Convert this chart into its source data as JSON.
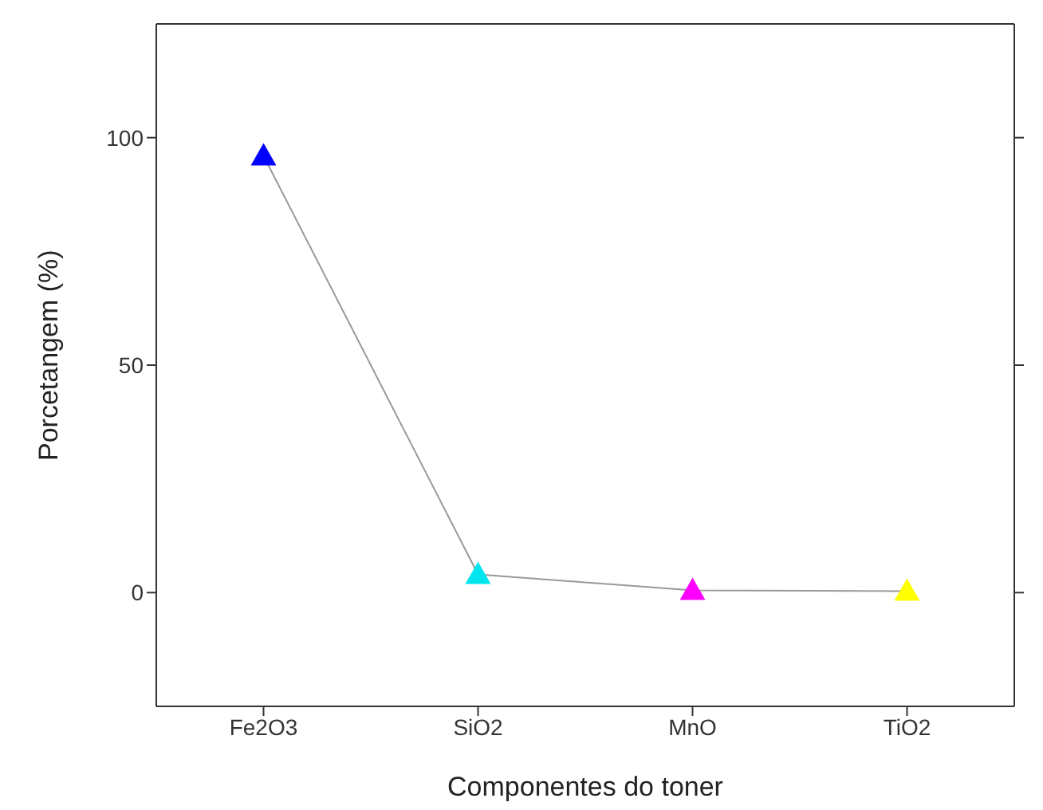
{
  "chart_data": {
    "type": "line",
    "xlabel": "Componentes do toner",
    "ylabel": "Porcetangem (%)",
    "categories": [
      "Fe2O3",
      "SiO2",
      "MnO",
      "TiO2"
    ],
    "series": [
      {
        "color": "#999999",
        "colors": [
          "#0000ff",
          "#00e5ee",
          "#ff00ff",
          "#ffff00"
        ],
        "values": [
          96,
          4,
          0.5,
          0.3
        ]
      }
    ],
    "ylim": [
      -25,
      125
    ],
    "yticks": [
      0,
      50,
      100
    ],
    "marker": "triangle",
    "line_style": "solid",
    "grid": false,
    "legend": false
  }
}
